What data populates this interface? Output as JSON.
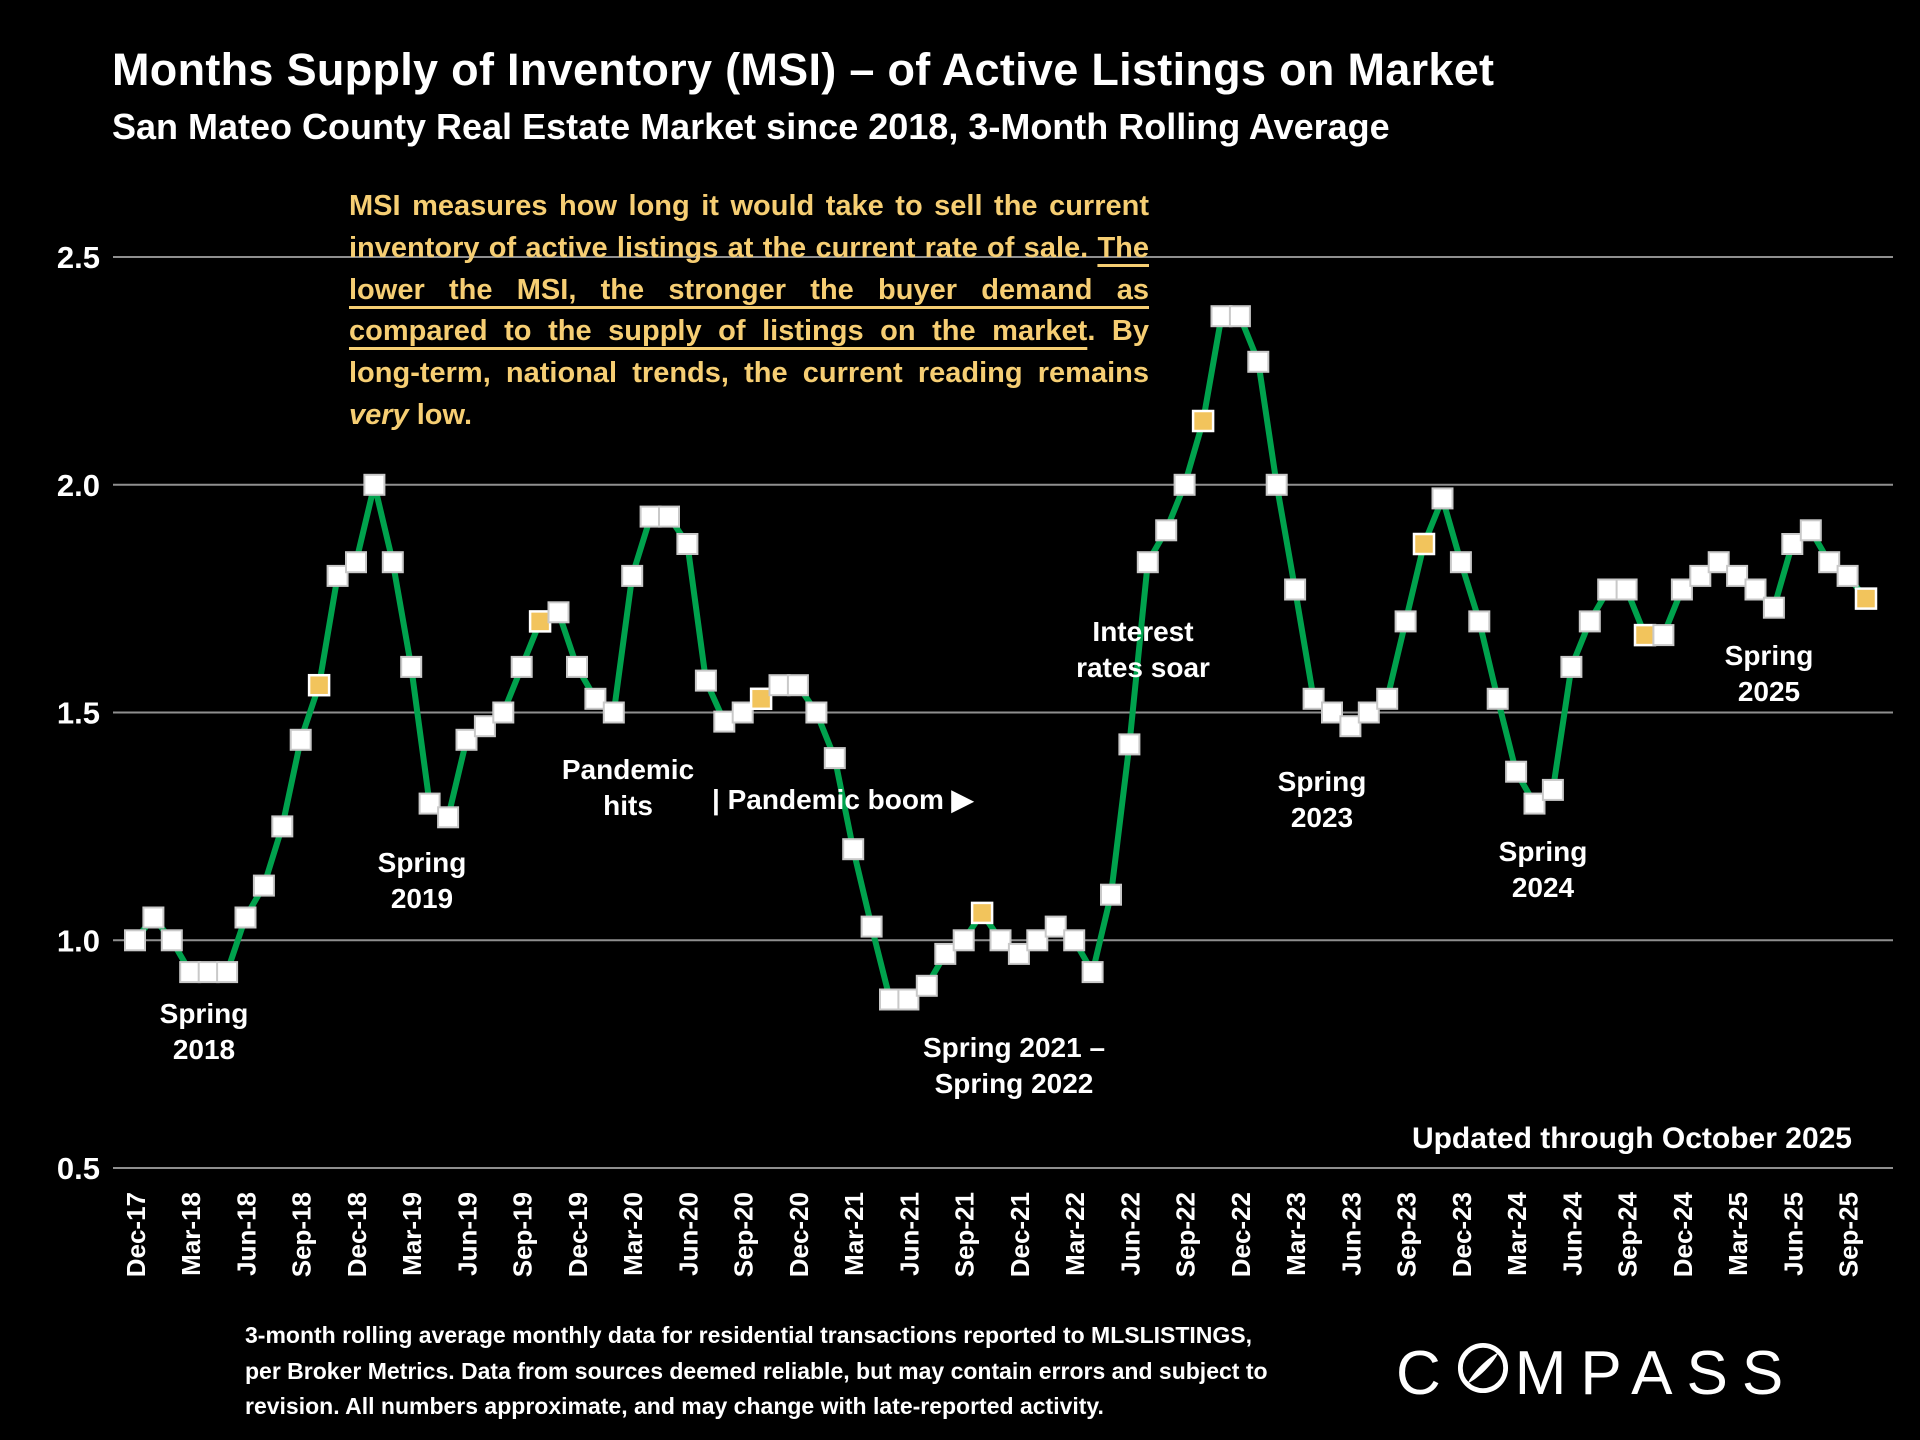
{
  "title": "Months Supply of Inventory (MSI) – of Active Listings on Market",
  "subtitle": "San Mateo County Real Estate Market since 2018, 3-Month Rolling Average",
  "explainer": {
    "p1": "MSI measures how long it would take to sell the current inventory of active listings at the current rate of sale. ",
    "p2_underline": "The lower the MSI, the stronger the buyer demand as compared to the supply of listings on the market",
    "p3": ".  By long-term, national trends, the current reading remains ",
    "p4_italic": "very",
    "p5": " low."
  },
  "annotations": {
    "spring_2018": {
      "l1": "Spring",
      "l2": "2018"
    },
    "spring_2019": {
      "l1": "Spring",
      "l2": "2019"
    },
    "pandemic_hits": {
      "l1": "Pandemic",
      "l2": "hits"
    },
    "pandemic_boom": {
      "l1": "| Pandemic boom ▶"
    },
    "spring_2021_2022": {
      "l1": "Spring 2021 –",
      "l2": "Spring 2022"
    },
    "interest_rates": {
      "l1": "Interest",
      "l2": "rates soar"
    },
    "spring_2023": {
      "l1": "Spring",
      "l2": "2023"
    },
    "spring_2024": {
      "l1": "Spring",
      "l2": "2024"
    },
    "spring_2025": {
      "l1": "Spring",
      "l2": "2025"
    },
    "updated": "Updated through October 2025"
  },
  "footer": {
    "line1": "3-month rolling average monthly data for residential transactions reported to MLSLISTINGS,",
    "line2": "per Broker Metrics. Data from sources deemed reliable, but may contain errors and subject to",
    "line3": "revision. All numbers approximate, and may change with late-reported activity."
  },
  "logo": {
    "name": "COMPASS",
    "pre": "C",
    "post": "MPASS"
  },
  "colors": {
    "background": "#000000",
    "accent_gold": "#F6CE73",
    "line_green": "#00A24D",
    "grid_gray": "#8F8F8F"
  },
  "chart_data": {
    "type": "line",
    "title": "Months Supply of Inventory (MSI) – of Active Listings on Market",
    "subtitle": "San Mateo County Real Estate Market since 2018, 3-Month Rolling Average",
    "xlabel": "",
    "ylabel": "",
    "ylim": [
      0.5,
      2.5
    ],
    "yticks": [
      0.5,
      1.0,
      1.5,
      2.0,
      2.5
    ],
    "grid": "horizontal",
    "legend": "none",
    "start_month": "Dec-17",
    "end_month": "Oct-25",
    "frequency": "monthly",
    "x_tick_labels": [
      "Dec-17",
      "Mar-18",
      "Jun-18",
      "Sep-18",
      "Dec-18",
      "Mar-19",
      "Jun-19",
      "Sep-19",
      "Dec-19",
      "Mar-20",
      "Jun-20",
      "Sep-20",
      "Dec-20",
      "Mar-21",
      "Jun-21",
      "Sep-21",
      "Dec-21",
      "Mar-22",
      "Jun-22",
      "Sep-22",
      "Dec-22",
      "Mar-23",
      "Jun-23",
      "Sep-23",
      "Dec-23",
      "Mar-24",
      "Jun-24",
      "Sep-24",
      "Dec-24",
      "Mar-25",
      "Jun-25",
      "Sep-25"
    ],
    "x_tick_every_n_months": 3,
    "values": [
      1.0,
      1.05,
      1.0,
      0.93,
      0.93,
      0.93,
      1.05,
      1.12,
      1.25,
      1.44,
      1.56,
      1.8,
      1.83,
      2.0,
      1.83,
      1.6,
      1.3,
      1.27,
      1.44,
      1.47,
      1.5,
      1.6,
      1.7,
      1.72,
      1.6,
      1.53,
      1.5,
      1.8,
      1.93,
      1.93,
      1.87,
      1.57,
      1.48,
      1.5,
      1.53,
      1.56,
      1.56,
      1.5,
      1.4,
      1.2,
      1.03,
      0.87,
      0.87,
      0.9,
      0.97,
      1.0,
      1.06,
      1.0,
      0.97,
      1.0,
      1.03,
      1.0,
      0.93,
      1.1,
      1.43,
      1.83,
      1.9,
      2.0,
      2.14,
      2.37,
      2.37,
      2.27,
      2.0,
      1.77,
      1.53,
      1.5,
      1.47,
      1.5,
      1.53,
      1.7,
      1.87,
      1.97,
      1.83,
      1.7,
      1.53,
      1.37,
      1.3,
      1.33,
      1.6,
      1.7,
      1.77,
      1.77,
      1.67,
      1.67,
      1.77,
      1.8,
      1.83,
      1.8,
      1.77,
      1.73,
      1.87,
      1.9,
      1.83,
      1.8,
      1.75
    ],
    "highlight_indices": [
      10,
      22,
      34,
      46,
      58,
      70,
      82,
      94
    ],
    "line_color": "#00A24D",
    "marker_shape": "square",
    "marker_color": "#FFFFFF",
    "highlight_color": "#F2C45C"
  }
}
